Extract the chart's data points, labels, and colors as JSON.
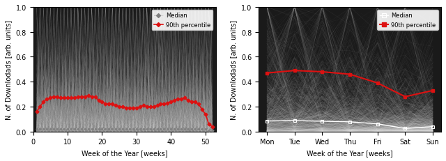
{
  "left": {
    "x_weeks": [
      1,
      2,
      3,
      4,
      5,
      6,
      7,
      8,
      9,
      10,
      11,
      12,
      13,
      14,
      15,
      16,
      17,
      18,
      19,
      20,
      21,
      22,
      23,
      24,
      25,
      26,
      27,
      28,
      29,
      30,
      31,
      32,
      33,
      34,
      35,
      36,
      37,
      38,
      39,
      40,
      41,
      42,
      43,
      44,
      45,
      46,
      47,
      48,
      49,
      50,
      51,
      52
    ],
    "p90": [
      0.16,
      0.2,
      0.24,
      0.26,
      0.27,
      0.28,
      0.28,
      0.27,
      0.27,
      0.27,
      0.27,
      0.27,
      0.28,
      0.28,
      0.28,
      0.29,
      0.28,
      0.28,
      0.25,
      0.24,
      0.22,
      0.22,
      0.22,
      0.21,
      0.2,
      0.2,
      0.19,
      0.19,
      0.19,
      0.19,
      0.2,
      0.21,
      0.2,
      0.2,
      0.2,
      0.21,
      0.22,
      0.22,
      0.23,
      0.24,
      0.25,
      0.26,
      0.26,
      0.27,
      0.25,
      0.24,
      0.24,
      0.22,
      0.18,
      0.14,
      0.06,
      0.04
    ],
    "median": [
      0.02,
      0.02,
      0.02,
      0.02,
      0.02,
      0.02,
      0.02,
      0.02,
      0.02,
      0.02,
      0.02,
      0.02,
      0.02,
      0.02,
      0.02,
      0.02,
      0.02,
      0.02,
      0.02,
      0.02,
      0.02,
      0.02,
      0.02,
      0.02,
      0.02,
      0.02,
      0.02,
      0.02,
      0.02,
      0.02,
      0.02,
      0.02,
      0.02,
      0.02,
      0.02,
      0.02,
      0.02,
      0.02,
      0.02,
      0.02,
      0.02,
      0.02,
      0.02,
      0.02,
      0.02,
      0.02,
      0.02,
      0.02,
      0.02,
      0.02,
      0.01,
      0.01
    ],
    "xlabel": "Week of the Year [weeks]",
    "ylabel": "N. of Downlodads [arb. units]",
    "xlim": [
      0,
      53
    ],
    "ylim": [
      0.0,
      1.0
    ],
    "xticks": [
      0,
      10,
      20,
      30,
      40,
      50
    ]
  },
  "right": {
    "x_days": [
      0,
      1,
      2,
      3,
      4,
      5,
      6
    ],
    "x_labels": [
      "Mon",
      "Tue",
      "Wed",
      "Thu",
      "Fri",
      "Sat",
      "Sun"
    ],
    "p90": [
      0.47,
      0.49,
      0.48,
      0.46,
      0.39,
      0.28,
      0.33
    ],
    "median": [
      0.085,
      0.088,
      0.083,
      0.078,
      0.062,
      0.025,
      0.04
    ],
    "xlabel": "Week of the Year [weeks]",
    "ylabel": "N. of Downlodads [arb. units]",
    "xlim": [
      -0.3,
      6.3
    ],
    "ylim": [
      0.0,
      1.0
    ]
  },
  "red_color": "#dd1111",
  "median_color_left": "#ffffff",
  "legend_median_left": "Median",
  "legend_p90_left": "90th percentile",
  "legend_median_right": "Median",
  "legend_p90_right": "90th percentile"
}
